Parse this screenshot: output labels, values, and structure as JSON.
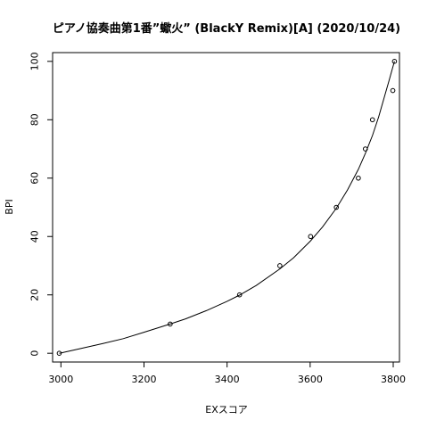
{
  "chart_data": {
    "type": "scatter",
    "title": "ピアノ協奏曲第1番”蠍火” (BlackY Remix)[A] (2020/10/24)",
    "xlabel": "EXスコア",
    "ylabel": "BPI",
    "xlim": [
      2980,
      3815
    ],
    "ylim": [
      -3,
      103
    ],
    "x_ticks": [
      3000,
      3200,
      3400,
      3600,
      3800
    ],
    "y_ticks": [
      0,
      20,
      40,
      60,
      80,
      100
    ],
    "x_tick_labels": [
      "3000",
      "3200",
      "3400",
      "3600",
      "3800"
    ],
    "y_tick_labels": [
      "0",
      "20",
      "40",
      "60",
      "80",
      "100"
    ],
    "points": {
      "x": [
        2996,
        3263,
        3430,
        3527,
        3601,
        3663,
        3716,
        3733,
        3750,
        3799,
        3803
      ],
      "y": [
        0,
        10,
        20,
        30,
        40,
        50,
        60,
        70,
        80,
        90,
        100
      ]
    },
    "fit_curve": {
      "x": [
        2996,
        3050,
        3100,
        3150,
        3200,
        3263,
        3300,
        3350,
        3400,
        3430,
        3470,
        3527,
        3560,
        3601,
        3630,
        3663,
        3690,
        3716,
        3733,
        3750,
        3765,
        3780,
        3790,
        3797,
        3803
      ],
      "y": [
        0,
        1.7,
        3.3,
        5.0,
        7.2,
        10,
        11.8,
        14.6,
        17.8,
        19.9,
        23.2,
        28.9,
        32.7,
        38.5,
        43.3,
        49.7,
        56.0,
        63.0,
        68.5,
        74.6,
        81.0,
        88.5,
        93.5,
        97.0,
        100
      ]
    },
    "grid": false,
    "legend": "none"
  }
}
